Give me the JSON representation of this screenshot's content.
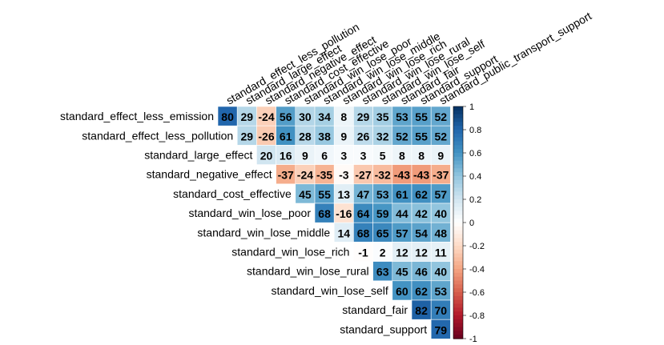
{
  "chart_data": {
    "type": "heatmap",
    "variables": [
      "standard_effect_less_emission",
      "standard_effect_less_pollution",
      "standard_large_effect",
      "standard_negative_effect",
      "standard_cost_effective",
      "standard_win_lose_poor",
      "standard_win_lose_middle",
      "standard_win_lose_rich",
      "standard_win_lose_rural",
      "standard_win_lose_self",
      "standard_fair",
      "standard_support",
      "standard_public_transport_support"
    ],
    "row_labels": [
      "standard_effect_less_emission",
      "standard_effect_less_pollution",
      "standard_large_effect",
      "standard_negative_effect",
      "standard_cost_effective",
      "standard_win_lose_poor",
      "standard_win_lose_middle",
      "standard_win_lose_rich",
      "standard_win_lose_rural",
      "standard_win_lose_self",
      "standard_fair",
      "standard_support"
    ],
    "col_labels": [
      "standard_effect_less_pollution",
      "standard_large_effect",
      "standard_negative_effect",
      "standard_cost_effective",
      "standard_win_lose_poor",
      "standard_win_lose_middle",
      "standard_win_lose_rich",
      "standard_win_lose_rural",
      "standard_win_lose_self",
      "standard_fair",
      "standard_support",
      "standard_public_transport_support"
    ],
    "upper_triangle_values": [
      [
        80,
        29,
        -24,
        56,
        30,
        34,
        8,
        29,
        35,
        53,
        55,
        52
      ],
      [
        29,
        -26,
        61,
        28,
        38,
        9,
        26,
        32,
        52,
        55,
        52
      ],
      [
        20,
        16,
        9,
        6,
        3,
        3,
        5,
        8,
        8,
        9
      ],
      [
        -37,
        -24,
        -35,
        -3,
        -27,
        -32,
        -43,
        -43,
        -37
      ],
      [
        45,
        55,
        13,
        47,
        53,
        61,
        62,
        57
      ],
      [
        68,
        -16,
        64,
        59,
        44,
        42,
        40
      ],
      [
        14,
        68,
        65,
        57,
        54,
        48
      ],
      [
        -1,
        2,
        12,
        12,
        11
      ],
      [
        63,
        45,
        46,
        40
      ],
      [
        60,
        62,
        53
      ],
      [
        82,
        70
      ],
      [
        79
      ]
    ],
    "colorbar": {
      "ticks": [
        "1",
        "0.8",
        "0.6",
        "0.4",
        "0.2",
        "0",
        "-0.2",
        "-0.4",
        "-0.6",
        "-0.8",
        "-1"
      ],
      "range": [
        -1,
        1
      ]
    },
    "colors": {
      "strong_negative": "#67001F",
      "negative": "#D6604D",
      "neutral": "#FFFFFF",
      "positive": "#4393C3",
      "strong_positive": "#053061"
    }
  }
}
